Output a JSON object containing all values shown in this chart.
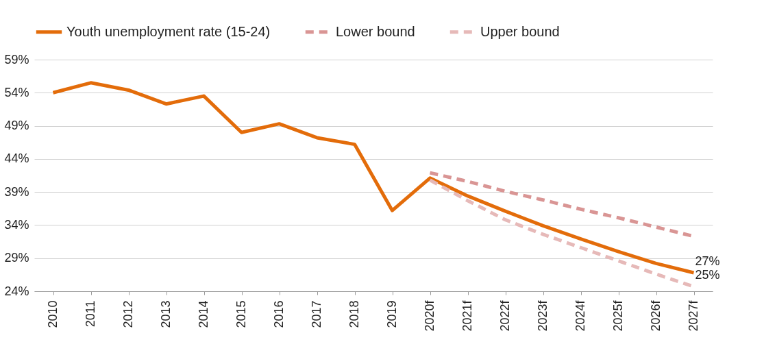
{
  "chart_data": {
    "type": "line",
    "categories": [
      "2010",
      "2011",
      "2012",
      "2013",
      "2014",
      "2015",
      "2016",
      "2017",
      "2018",
      "2019",
      "2020f",
      "2021f",
      "2022f",
      "2023f",
      "2024f",
      "2025f",
      "2026f",
      "2027f"
    ],
    "series": [
      {
        "name": "Youth unemployment rate (15-24)",
        "color": "#e36c0a",
        "line_style": "solid",
        "values": [
          54,
          55.5,
          54.4,
          52.3,
          53.5,
          48,
          49.3,
          47.2,
          46.2,
          36.2,
          41.1,
          38.4,
          36.1,
          33.9,
          31.9,
          30,
          28.2,
          26.8
        ],
        "value_labels": [
          null,
          null,
          null,
          null,
          null,
          null,
          null,
          null,
          null,
          null,
          null,
          null,
          null,
          null,
          null,
          null,
          null,
          "27%"
        ]
      },
      {
        "name": "Lower bound",
        "color": "#d99594",
        "line_style": "dashed",
        "values": [
          null,
          null,
          null,
          null,
          null,
          null,
          null,
          null,
          null,
          null,
          41.9,
          40.6,
          39.1,
          37.8,
          36.4,
          35.1,
          33.7,
          32.3
        ]
      },
      {
        "name": "Upper bound",
        "color": "#e6b9b8",
        "line_style": "dashed",
        "values": [
          null,
          null,
          null,
          null,
          null,
          null,
          null,
          null,
          null,
          null,
          40.8,
          37.7,
          34.8,
          32.6,
          30.6,
          28.6,
          26.6,
          24.7
        ],
        "value_labels": [
          null,
          null,
          null,
          null,
          null,
          null,
          null,
          null,
          null,
          null,
          null,
          null,
          null,
          null,
          null,
          null,
          null,
          "25%"
        ]
      }
    ],
    "ylim": [
      24,
      59
    ],
    "yticks": [
      {
        "value": 24,
        "label": "24%"
      },
      {
        "value": 29,
        "label": "29%"
      },
      {
        "value": 34,
        "label": "34%"
      },
      {
        "value": 39,
        "label": "39%"
      },
      {
        "value": 44,
        "label": "44%"
      },
      {
        "value": 49,
        "label": "49%"
      },
      {
        "value": 54,
        "label": "54%"
      },
      {
        "value": 59,
        "label": "59%"
      }
    ],
    "grid": "y",
    "legend": "top"
  }
}
